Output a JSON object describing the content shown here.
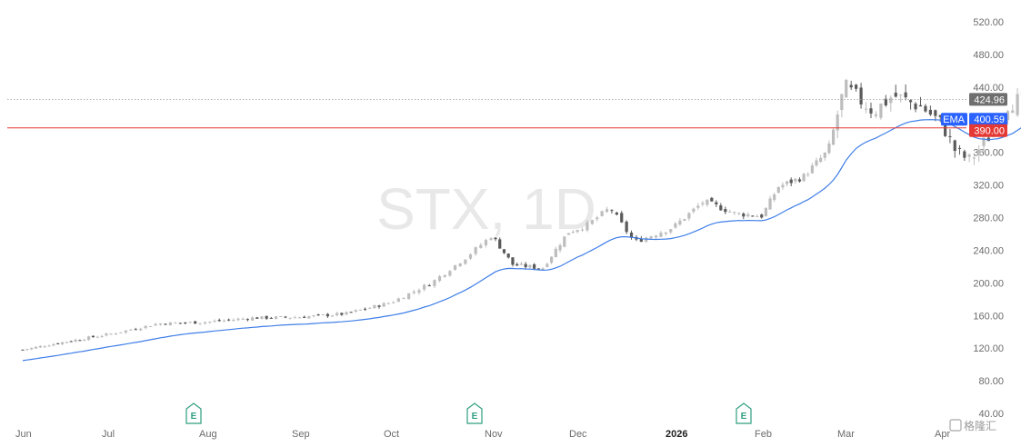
{
  "chart_data": {
    "type": "candlestick",
    "watermark": "STX, 1D",
    "x_labels": [
      "Jun",
      "Jul",
      "Aug",
      "Sep",
      "Oct",
      "Nov",
      "Dec",
      "2026",
      "Feb",
      "Mar",
      "Apr"
    ],
    "y_ticks": [
      "520.00",
      "480.00",
      "440.00",
      "400.00",
      "360.00",
      "320.00",
      "280.00",
      "240.00",
      "200.00",
      "160.00",
      "120.00",
      "80.00",
      "40.00"
    ],
    "ylim": [
      40,
      520
    ],
    "last_price": {
      "label": "424.96",
      "value": 424.96
    },
    "ema": {
      "label": "EMA",
      "value_label": "400.59",
      "value": 400.59
    },
    "alert_line": {
      "label": "390.00",
      "value": 390.0
    },
    "earnings_markers": [
      {
        "month": "Aug",
        "label": "E"
      },
      {
        "month": "Nov",
        "label": "E"
      },
      {
        "month": "Feb",
        "label": "E"
      }
    ],
    "colors": {
      "up": "#bdbdbd",
      "down": "#5a5a5a",
      "ema": "#3f7ee8",
      "alert": "#e53935",
      "last": "#6e6e6e",
      "ema_tag": "#2962ff"
    },
    "close_path": [
      {
        "month": 5.0,
        "v": 118
      },
      {
        "month": 5.5,
        "v": 128
      },
      {
        "month": 6.0,
        "v": 137
      },
      {
        "month": 6.5,
        "v": 150
      },
      {
        "month": 7.0,
        "v": 152
      },
      {
        "month": 7.5,
        "v": 157
      },
      {
        "month": 8.0,
        "v": 158
      },
      {
        "month": 8.5,
        "v": 162
      },
      {
        "month": 9.0,
        "v": 176
      },
      {
        "month": 9.4,
        "v": 200
      },
      {
        "month": 9.75,
        "v": 232
      },
      {
        "month": 10.0,
        "v": 258
      },
      {
        "month": 10.25,
        "v": 222
      },
      {
        "month": 10.6,
        "v": 218
      },
      {
        "month": 10.9,
        "v": 262
      },
      {
        "month": 11.1,
        "v": 270
      },
      {
        "month": 11.35,
        "v": 292
      },
      {
        "month": 11.6,
        "v": 250
      },
      {
        "month": 12.0,
        "v": 268
      },
      {
        "month": 12.35,
        "v": 300
      },
      {
        "month": 12.7,
        "v": 285
      },
      {
        "month": 13.0,
        "v": 282
      },
      {
        "month": 13.2,
        "v": 318
      },
      {
        "month": 13.5,
        "v": 330
      },
      {
        "month": 13.8,
        "v": 362
      },
      {
        "month": 14.0,
        "v": 440
      },
      {
        "month": 14.3,
        "v": 410
      },
      {
        "month": 14.5,
        "v": 430
      },
      {
        "month": 14.8,
        "v": 415
      },
      {
        "month": 15.0,
        "v": 395
      },
      {
        "month": 15.15,
        "v": 360
      },
      {
        "month": 15.3,
        "v": 350
      },
      {
        "month": 15.5,
        "v": 380
      },
      {
        "month": 15.7,
        "v": 420
      },
      {
        "month": 15.85,
        "v": 425
      }
    ]
  }
}
